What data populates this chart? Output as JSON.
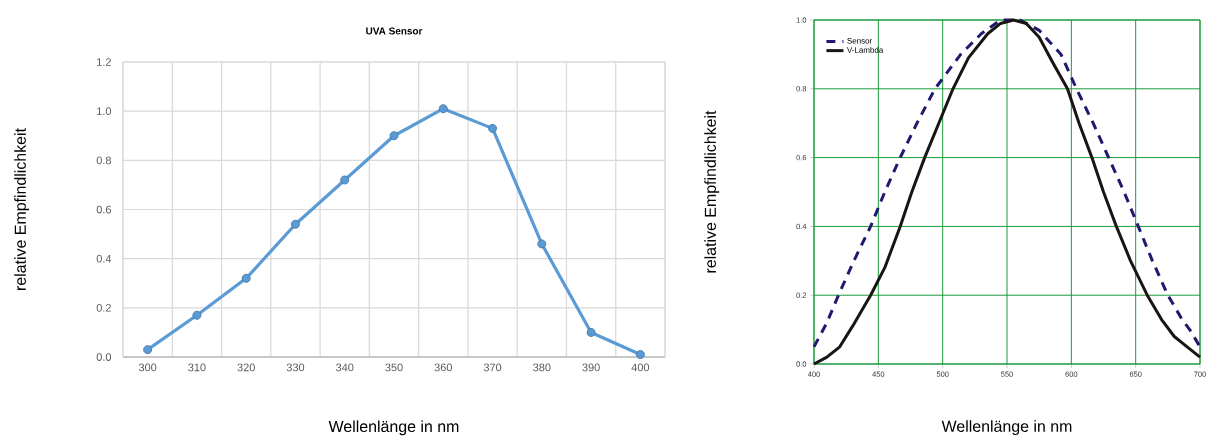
{
  "chart_data": [
    {
      "type": "line",
      "title": "UVA Sensor",
      "xlabel": "Wellenlänge in nm",
      "ylabel": "relative Empfindlichkeit",
      "categories": [
        "300",
        "310",
        "320",
        "330",
        "340",
        "350",
        "360",
        "370",
        "380",
        "390",
        "400"
      ],
      "values": [
        0.03,
        0.17,
        0.32,
        0.54,
        0.72,
        0.9,
        1.01,
        0.93,
        0.46,
        0.1,
        0.01
      ],
      "color": "#5b9bd5",
      "marker": "circle",
      "grid": true,
      "ylim": [
        0,
        1.2
      ],
      "yticks": [
        {
          "value": 0,
          "label": "0.0"
        },
        {
          "value": 0.2,
          "label": "0.2"
        },
        {
          "value": 0.4,
          "label": "0.4"
        },
        {
          "value": 0.6,
          "label": "0.6"
        },
        {
          "value": 0.8,
          "label": "0.8"
        },
        {
          "value": 1.0,
          "label": "1.0"
        },
        {
          "value": 1.2,
          "label": "1.2"
        }
      ]
    },
    {
      "type": "line",
      "xlabel": "Wellenlänge in nm",
      "ylabel": "relative Empfindlichkeit",
      "series": [
        {
          "name": "Sensor",
          "color": "#1f1a6e",
          "line_style": "dashed",
          "x": [
            400,
            410,
            419,
            431,
            444,
            455,
            467,
            480,
            494,
            514,
            530,
            545,
            560,
            575,
            592,
            604,
            617,
            629,
            641,
            652,
            663,
            675,
            686,
            692,
            700
          ],
          "values": [
            0.05,
            0.12,
            0.2,
            0.3,
            0.4,
            0.5,
            0.6,
            0.7,
            0.8,
            0.9,
            0.96,
            1.0,
            1.0,
            0.97,
            0.9,
            0.8,
            0.7,
            0.6,
            0.5,
            0.4,
            0.3,
            0.2,
            0.13,
            0.1,
            0.05
          ]
        },
        {
          "name": "V-Lambda",
          "color": "#1a1414",
          "line_style": "solid",
          "x": [
            400,
            410,
            420,
            430,
            444,
            455,
            467,
            476,
            486,
            497,
            508,
            520,
            535,
            545,
            555,
            565,
            575,
            585,
            597,
            606,
            616,
            625,
            635,
            646,
            659,
            670,
            680,
            690,
            700
          ],
          "values": [
            0.0,
            0.02,
            0.05,
            0.11,
            0.2,
            0.28,
            0.4,
            0.5,
            0.6,
            0.7,
            0.8,
            0.89,
            0.96,
            0.99,
            1.0,
            0.99,
            0.95,
            0.88,
            0.8,
            0.7,
            0.6,
            0.5,
            0.4,
            0.3,
            0.2,
            0.13,
            0.08,
            0.05,
            0.02
          ]
        }
      ],
      "marker": "none",
      "grid": true,
      "legend": "top left",
      "xlim": [
        400,
        700
      ],
      "xticks": [
        400,
        450,
        500,
        550,
        600,
        650,
        700
      ],
      "ylim": [
        0,
        1.0
      ],
      "yticks": [
        {
          "value": 0,
          "label": "0.0"
        },
        {
          "value": 0.2,
          "label": "0.2"
        },
        {
          "value": 0.4,
          "label": "0.4"
        },
        {
          "value": 0.6,
          "label": "0.6"
        },
        {
          "value": 0.8,
          "label": "0.8"
        },
        {
          "value": 1.0,
          "label": "1.0"
        }
      ]
    }
  ]
}
